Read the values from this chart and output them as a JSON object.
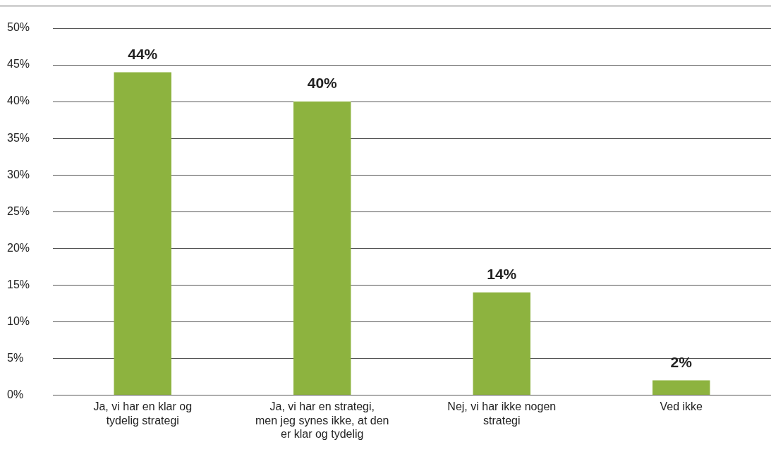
{
  "chart_data": {
    "type": "bar",
    "categories": [
      "Ja, vi har en klar og tydelig strategi",
      "Ja, vi har en strategi, men jeg synes ikke, at den er klar og tydelig",
      "Nej, vi har ikke nogen strategi",
      "Ved ikke"
    ],
    "values": [
      44,
      40,
      14,
      2
    ],
    "color": "#8db33f",
    "value_labels": [
      "44%",
      "40%",
      "14%",
      "2%"
    ],
    "ylim": [
      0,
      50
    ],
    "yticks": [
      {
        "value": 0,
        "label": "0%"
      },
      {
        "value": 5,
        "label": "5%"
      },
      {
        "value": 10,
        "label": "10%"
      },
      {
        "value": 15,
        "label": "15%"
      },
      {
        "value": 20,
        "label": "20%"
      },
      {
        "value": 25,
        "label": "25%"
      },
      {
        "value": 30,
        "label": "30%"
      },
      {
        "value": 35,
        "label": "35%"
      },
      {
        "value": 40,
        "label": "40%"
      },
      {
        "value": 45,
        "label": "45%"
      },
      {
        "value": 50,
        "label": "50%"
      }
    ],
    "grid": "y",
    "legend": false
  }
}
